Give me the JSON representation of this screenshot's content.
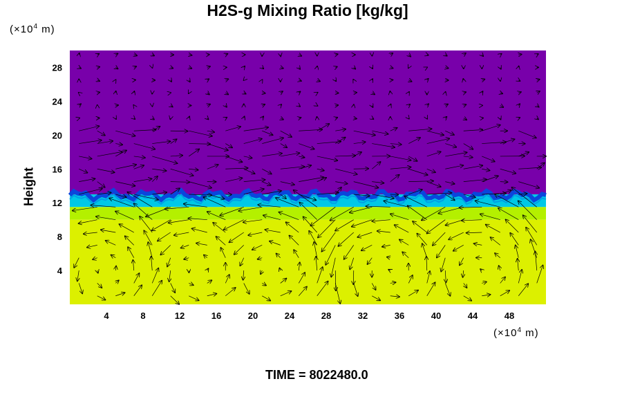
{
  "chart_data": {
    "type": "heatmap",
    "title": "H2S-g Mixing Ratio [kg/kg]",
    "ylabel": "Height",
    "x_unit": "(×10^4 m)",
    "y_unit": "(×10^4 m)",
    "xlim": [
      0,
      52
    ],
    "ylim": [
      0,
      30
    ],
    "x_ticks": [
      "4",
      "8",
      "12",
      "16",
      "20",
      "24",
      "28",
      "32",
      "36",
      "40",
      "44",
      "48"
    ],
    "y_ticks": [
      "4",
      "8",
      "12",
      "16",
      "20",
      "24",
      "28"
    ],
    "layers": [
      {
        "name": "upper",
        "y_from": 13.0,
        "y_to": 30,
        "color": "#7800aa"
      },
      {
        "name": "transition",
        "y_from": 11.5,
        "y_to": 13.0,
        "color": "#00c8e6"
      },
      {
        "name": "lower-band",
        "y_from": 10.0,
        "y_to": 11.5,
        "color": "#b4f000"
      },
      {
        "name": "lower",
        "y_from": 0,
        "y_to": 10.0,
        "color": "#dcf000"
      }
    ],
    "vector_field": "wind arrows overlaid; strong horizontal flow at heights 12-21, convective cells below 12",
    "vortex_centers_x": [
      4,
      14,
      22,
      35,
      45
    ]
  },
  "labels": {
    "unit_y_prefix": "(×10",
    "unit_y_exp": "4",
    "unit_y_suffix": " m)",
    "unit_x_prefix": "(×10",
    "unit_x_exp": "4",
    "unit_x_suffix": " m)",
    "time_label": "TIME =",
    "time_value": "8022480.0"
  }
}
